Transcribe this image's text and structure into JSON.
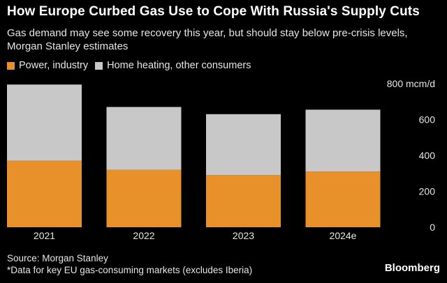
{
  "title": "How Europe Curbed Gas Use to Cope With Russia's Supply Cuts",
  "subtitle": "Gas demand may see some recovery this year, but should stay below pre-crisis levels, Morgan Stanley estimates",
  "source_line": "Source: Morgan Stanley",
  "footnote": "*Data for key EU gas-consuming markets (excludes Iberia)",
  "brand": "Bloomberg",
  "colors": {
    "power": "#e8902a",
    "heating": "#c8c8c8",
    "background": "#000000"
  },
  "chart_data": {
    "type": "bar",
    "stacked": true,
    "title": "How Europe Curbed Gas Use to Cope With Russia's Supply Cuts",
    "subtitle": "Gas demand may see some recovery this year, but should stay below pre-crisis levels, Morgan Stanley estimates",
    "categories": [
      "2021",
      "2022",
      "2023",
      "2024e"
    ],
    "series": [
      {
        "name": "Power, industry",
        "color": "#e8902a",
        "values": [
          370,
          320,
          290,
          310
        ]
      },
      {
        "name": "Home heating, other consumers",
        "color": "#c8c8c8",
        "values": [
          425,
          350,
          340,
          345
        ]
      }
    ],
    "ylim": [
      0,
      800
    ],
    "y_ticks": [
      0,
      200,
      400,
      600,
      800
    ],
    "y_tick_labels": [
      "0",
      "200",
      "400",
      "600",
      "800 mcm/d"
    ],
    "y_axis_side": "right",
    "legend_placement": "top-left",
    "grid": false
  }
}
